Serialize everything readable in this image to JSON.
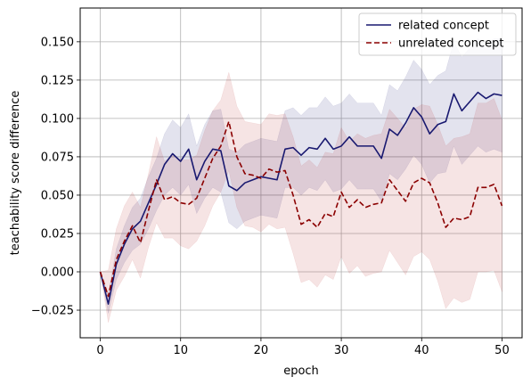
{
  "chart_data": {
    "type": "line",
    "title": "",
    "xlabel": "epoch",
    "ylabel": "teachability score difference",
    "xlim": [
      -2.5,
      52.5
    ],
    "ylim": [
      -0.043,
      0.172
    ],
    "x_ticks": [
      0,
      10,
      20,
      30,
      40,
      50
    ],
    "y_ticks": [
      -0.025,
      0.0,
      0.025,
      0.05,
      0.075,
      0.1,
      0.125,
      0.15
    ],
    "x_tick_labels": [
      "0",
      "10",
      "20",
      "30",
      "40",
      "50"
    ],
    "y_tick_labels": [
      "−0.025",
      "0.000",
      "0.025",
      "0.050",
      "0.075",
      "0.100",
      "0.125",
      "0.150"
    ],
    "grid": true,
    "legend_position": "top-right",
    "x": [
      0,
      1,
      2,
      3,
      4,
      5,
      6,
      7,
      8,
      9,
      10,
      11,
      12,
      13,
      14,
      15,
      16,
      17,
      18,
      19,
      20,
      21,
      22,
      23,
      24,
      25,
      26,
      27,
      28,
      29,
      30,
      31,
      32,
      33,
      34,
      35,
      36,
      37,
      38,
      39,
      40,
      41,
      42,
      43,
      44,
      45,
      46,
      47,
      48,
      49,
      50
    ],
    "series": [
      {
        "name": "related concept",
        "color": "#191970",
        "band_color": "#191970",
        "style": "solid",
        "values": [
          0.0,
          -0.021,
          0.005,
          0.018,
          0.028,
          0.033,
          0.045,
          0.057,
          0.07,
          0.077,
          0.072,
          0.08,
          0.06,
          0.072,
          0.08,
          0.079,
          0.056,
          0.053,
          0.058,
          0.06,
          0.062,
          0.061,
          0.06,
          0.08,
          0.081,
          0.076,
          0.081,
          0.08,
          0.087,
          0.08,
          0.082,
          0.088,
          0.082,
          0.082,
          0.082,
          0.074,
          0.093,
          0.089,
          0.097,
          0.107,
          0.101,
          0.09,
          0.096,
          0.098,
          0.116,
          0.105,
          0.111,
          0.117,
          0.113,
          0.116,
          0.115
        ],
        "lower": [
          0.0,
          -0.027,
          -0.005,
          0.006,
          0.014,
          0.018,
          0.028,
          0.04,
          0.05,
          0.055,
          0.05,
          0.057,
          0.038,
          0.048,
          0.055,
          0.052,
          0.032,
          0.028,
          0.033,
          0.035,
          0.037,
          0.036,
          0.035,
          0.055,
          0.055,
          0.05,
          0.055,
          0.053,
          0.06,
          0.052,
          0.054,
          0.06,
          0.054,
          0.054,
          0.054,
          0.046,
          0.064,
          0.06,
          0.067,
          0.076,
          0.07,
          0.058,
          0.064,
          0.065,
          0.082,
          0.07,
          0.076,
          0.082,
          0.078,
          0.08,
          0.078
        ],
        "upper": [
          0.0,
          -0.015,
          0.015,
          0.03,
          0.042,
          0.048,
          0.062,
          0.074,
          0.09,
          0.099,
          0.094,
          0.103,
          0.082,
          0.096,
          0.105,
          0.106,
          0.08,
          0.078,
          0.083,
          0.085,
          0.087,
          0.086,
          0.085,
          0.105,
          0.107,
          0.102,
          0.107,
          0.107,
          0.114,
          0.108,
          0.11,
          0.116,
          0.11,
          0.11,
          0.11,
          0.102,
          0.122,
          0.118,
          0.127,
          0.138,
          0.132,
          0.122,
          0.128,
          0.131,
          0.15,
          0.14,
          0.146,
          0.152,
          0.148,
          0.152,
          0.152
        ]
      },
      {
        "name": "unrelated concept",
        "color": "#8b0000",
        "band_color": "#b22222",
        "style": "dashed",
        "values": [
          0.0,
          -0.016,
          0.008,
          0.02,
          0.03,
          0.019,
          0.04,
          0.06,
          0.047,
          0.049,
          0.045,
          0.044,
          0.048,
          0.061,
          0.074,
          0.082,
          0.098,
          0.075,
          0.064,
          0.063,
          0.061,
          0.067,
          0.065,
          0.066,
          0.05,
          0.031,
          0.034,
          0.029,
          0.038,
          0.036,
          0.052,
          0.042,
          0.047,
          0.042,
          0.044,
          0.045,
          0.06,
          0.053,
          0.046,
          0.058,
          0.061,
          0.058,
          0.045,
          0.029,
          0.035,
          0.034,
          0.036,
          0.055,
          0.055,
          0.057,
          0.043
        ],
        "lower": [
          0.0,
          -0.033,
          -0.012,
          -0.003,
          0.008,
          -0.004,
          0.016,
          0.032,
          0.022,
          0.022,
          0.017,
          0.015,
          0.02,
          0.03,
          0.043,
          0.052,
          0.066,
          0.042,
          0.03,
          0.029,
          0.026,
          0.031,
          0.028,
          0.029,
          0.012,
          -0.007,
          -0.005,
          -0.01,
          -0.002,
          -0.005,
          0.01,
          -0.001,
          0.004,
          -0.003,
          -0.001,
          0.0,
          0.014,
          0.006,
          -0.002,
          0.01,
          0.013,
          0.008,
          -0.006,
          -0.024,
          -0.017,
          -0.02,
          -0.018,
          0.0,
          0.0,
          0.001,
          -0.013
        ],
        "upper": [
          0.0,
          0.001,
          0.028,
          0.043,
          0.052,
          0.042,
          0.064,
          0.088,
          0.072,
          0.076,
          0.073,
          0.073,
          0.076,
          0.092,
          0.105,
          0.112,
          0.13,
          0.108,
          0.098,
          0.097,
          0.096,
          0.103,
          0.102,
          0.103,
          0.088,
          0.069,
          0.073,
          0.068,
          0.078,
          0.077,
          0.094,
          0.085,
          0.09,
          0.087,
          0.089,
          0.09,
          0.106,
          0.1,
          0.094,
          0.106,
          0.109,
          0.108,
          0.096,
          0.082,
          0.087,
          0.088,
          0.09,
          0.11,
          0.11,
          0.113,
          0.099
        ]
      }
    ]
  }
}
